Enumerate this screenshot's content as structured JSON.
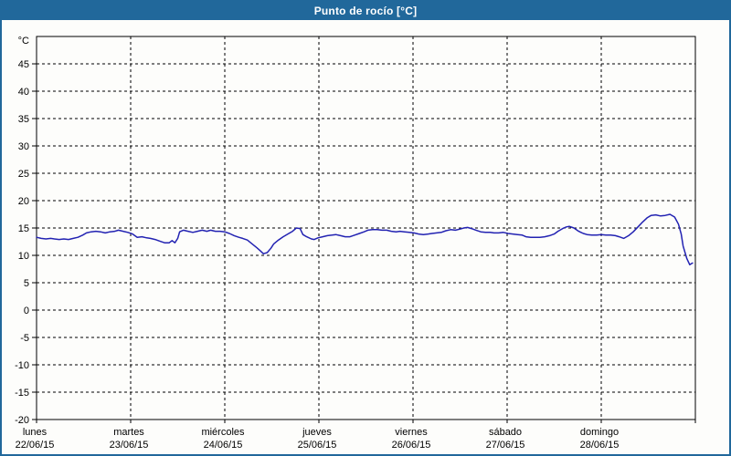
{
  "window": {
    "title": "Punto de rocío [°C]"
  },
  "colors": {
    "titlebar_bg": "#21689b",
    "window_border": "#21689b",
    "background": "#fdfdfb",
    "axis": "#000000",
    "line": "#2222b2"
  },
  "chart_data": {
    "type": "line",
    "title": "Punto de rocío [°C]",
    "unit_label": "°C",
    "ylim": [
      -20,
      50
    ],
    "y_ticks": [
      45,
      40,
      35,
      30,
      25,
      20,
      15,
      10,
      5,
      0,
      -5,
      -10,
      -15,
      -20
    ],
    "grid": {
      "style": "dashed",
      "color": "#000000"
    },
    "legend_position": "none",
    "x_days": [
      {
        "name": "lunes",
        "date": "22/06/15"
      },
      {
        "name": "martes",
        "date": "23/06/15"
      },
      {
        "name": "miércoles",
        "date": "24/06/15"
      },
      {
        "name": "jueves",
        "date": "25/06/15"
      },
      {
        "name": "viernes",
        "date": "26/06/15"
      },
      {
        "name": "sábado",
        "date": "27/06/15"
      },
      {
        "name": "domingo",
        "date": "28/06/15"
      }
    ],
    "series": [
      {
        "name": "Punto de rocío",
        "color": "#2222b2",
        "x_unit": "days_from_start",
        "y_unit": "°C",
        "points": [
          [
            0.0,
            13.3
          ],
          [
            0.05,
            13.1
          ],
          [
            0.1,
            13.0
          ],
          [
            0.15,
            13.1
          ],
          [
            0.19,
            13.0
          ],
          [
            0.24,
            12.9
          ],
          [
            0.29,
            13.0
          ],
          [
            0.34,
            12.9
          ],
          [
            0.39,
            13.1
          ],
          [
            0.44,
            13.3
          ],
          [
            0.49,
            13.7
          ],
          [
            0.53,
            14.1
          ],
          [
            0.58,
            14.3
          ],
          [
            0.63,
            14.4
          ],
          [
            0.68,
            14.3
          ],
          [
            0.73,
            14.1
          ],
          [
            0.78,
            14.3
          ],
          [
            0.83,
            14.4
          ],
          [
            0.87,
            14.6
          ],
          [
            0.92,
            14.4
          ],
          [
            0.97,
            14.2
          ],
          [
            1.02,
            13.9
          ],
          [
            1.07,
            13.3
          ],
          [
            1.12,
            13.4
          ],
          [
            1.17,
            13.2
          ],
          [
            1.21,
            13.1
          ],
          [
            1.26,
            12.9
          ],
          [
            1.31,
            12.6
          ],
          [
            1.36,
            12.3
          ],
          [
            1.41,
            12.3
          ],
          [
            1.44,
            12.7
          ],
          [
            1.47,
            12.3
          ],
          [
            1.5,
            13.1
          ],
          [
            1.52,
            14.3
          ],
          [
            1.56,
            14.6
          ],
          [
            1.61,
            14.4
          ],
          [
            1.66,
            14.2
          ],
          [
            1.71,
            14.4
          ],
          [
            1.76,
            14.6
          ],
          [
            1.81,
            14.4
          ],
          [
            1.85,
            14.6
          ],
          [
            1.9,
            14.4
          ],
          [
            1.95,
            14.4
          ],
          [
            2.0,
            14.3
          ],
          [
            2.05,
            14.0
          ],
          [
            2.1,
            13.6
          ],
          [
            2.15,
            13.3
          ],
          [
            2.19,
            13.1
          ],
          [
            2.24,
            12.8
          ],
          [
            2.29,
            12.1
          ],
          [
            2.34,
            11.4
          ],
          [
            2.38,
            10.8
          ],
          [
            2.41,
            10.3
          ],
          [
            2.45,
            10.5
          ],
          [
            2.49,
            11.3
          ],
          [
            2.52,
            12.1
          ],
          [
            2.57,
            12.8
          ],
          [
            2.62,
            13.4
          ],
          [
            2.67,
            13.9
          ],
          [
            2.72,
            14.4
          ],
          [
            2.76,
            15.0
          ],
          [
            2.8,
            14.9
          ],
          [
            2.83,
            13.8
          ],
          [
            2.87,
            13.4
          ],
          [
            2.92,
            13.0
          ],
          [
            2.95,
            12.9
          ],
          [
            2.99,
            13.2
          ],
          [
            3.04,
            13.4
          ],
          [
            3.09,
            13.6
          ],
          [
            3.14,
            13.7
          ],
          [
            3.18,
            13.8
          ],
          [
            3.23,
            13.6
          ],
          [
            3.28,
            13.4
          ],
          [
            3.33,
            13.4
          ],
          [
            3.38,
            13.7
          ],
          [
            3.43,
            14.0
          ],
          [
            3.48,
            14.3
          ],
          [
            3.52,
            14.6
          ],
          [
            3.57,
            14.7
          ],
          [
            3.62,
            14.7
          ],
          [
            3.67,
            14.6
          ],
          [
            3.72,
            14.6
          ],
          [
            3.77,
            14.4
          ],
          [
            3.82,
            14.3
          ],
          [
            3.86,
            14.4
          ],
          [
            3.91,
            14.3
          ],
          [
            3.96,
            14.2
          ],
          [
            4.01,
            14.1
          ],
          [
            4.06,
            13.9
          ],
          [
            4.11,
            13.8
          ],
          [
            4.16,
            13.9
          ],
          [
            4.2,
            14.0
          ],
          [
            4.25,
            14.1
          ],
          [
            4.3,
            14.2
          ],
          [
            4.35,
            14.5
          ],
          [
            4.4,
            14.7
          ],
          [
            4.45,
            14.6
          ],
          [
            4.5,
            14.8
          ],
          [
            4.54,
            15.0
          ],
          [
            4.58,
            15.1
          ],
          [
            4.62,
            14.9
          ],
          [
            4.67,
            14.6
          ],
          [
            4.72,
            14.3
          ],
          [
            4.77,
            14.2
          ],
          [
            4.82,
            14.2
          ],
          [
            4.86,
            14.1
          ],
          [
            4.91,
            14.1
          ],
          [
            4.96,
            14.2
          ],
          [
            5.01,
            14.0
          ],
          [
            5.06,
            13.9
          ],
          [
            5.11,
            13.8
          ],
          [
            5.16,
            13.7
          ],
          [
            5.2,
            13.4
          ],
          [
            5.25,
            13.3
          ],
          [
            5.3,
            13.3
          ],
          [
            5.35,
            13.3
          ],
          [
            5.4,
            13.4
          ],
          [
            5.45,
            13.6
          ],
          [
            5.5,
            13.9
          ],
          [
            5.54,
            14.4
          ],
          [
            5.59,
            14.9
          ],
          [
            5.63,
            15.2
          ],
          [
            5.66,
            15.3
          ],
          [
            5.71,
            15.0
          ],
          [
            5.76,
            14.4
          ],
          [
            5.81,
            14.0
          ],
          [
            5.85,
            13.8
          ],
          [
            5.9,
            13.7
          ],
          [
            5.95,
            13.7
          ],
          [
            6.0,
            13.8
          ],
          [
            6.05,
            13.7
          ],
          [
            6.1,
            13.7
          ],
          [
            6.15,
            13.6
          ],
          [
            6.19,
            13.4
          ],
          [
            6.24,
            13.1
          ],
          [
            6.29,
            13.6
          ],
          [
            6.34,
            14.3
          ],
          [
            6.39,
            15.2
          ],
          [
            6.44,
            16.1
          ],
          [
            6.49,
            16.9
          ],
          [
            6.53,
            17.3
          ],
          [
            6.58,
            17.4
          ],
          [
            6.63,
            17.2
          ],
          [
            6.68,
            17.3
          ],
          [
            6.73,
            17.5
          ],
          [
            6.78,
            17.0
          ],
          [
            6.82,
            15.7
          ],
          [
            6.85,
            13.9
          ],
          [
            6.87,
            11.7
          ],
          [
            6.91,
            9.4
          ],
          [
            6.94,
            8.3
          ],
          [
            6.97,
            8.6
          ]
        ]
      }
    ]
  }
}
